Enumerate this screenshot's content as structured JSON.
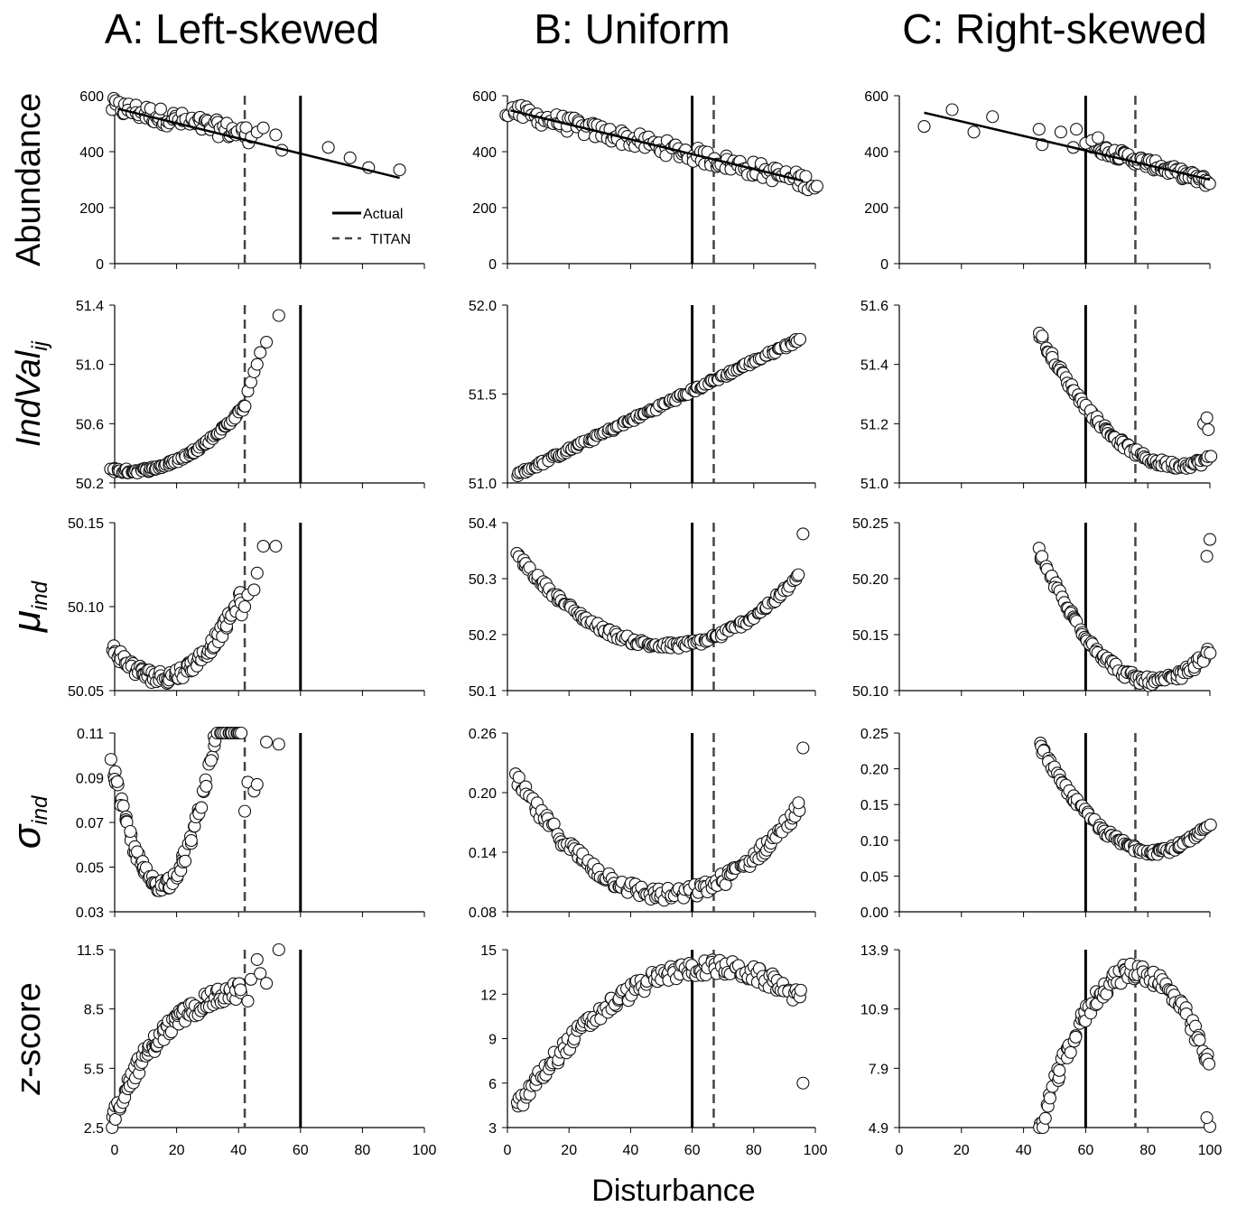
{
  "figure": {
    "column_titles": [
      "A: Left-skewed",
      "B: Uniform",
      "C: Right-skewed"
    ],
    "x_axis_label": "Disturbance",
    "legend": {
      "actual": "Actual",
      "titan": "TITAN"
    },
    "row_labels": [
      {
        "text": "Abundance",
        "sub": "",
        "italic": false,
        "greek": false
      },
      {
        "text": "IndVal",
        "sub": "ij",
        "italic": true,
        "greek": false
      },
      {
        "text": "μ",
        "sub": "ind",
        "italic": true,
        "greek": true
      },
      {
        "text": "σ",
        "sub": "ind",
        "italic": true,
        "greek": true
      },
      {
        "text": "z-score",
        "sub": "",
        "italic": false,
        "greek": false,
        "italic_first": true
      }
    ]
  },
  "chart_data": [
    {
      "type": "scatter",
      "panel": "A-abundance",
      "xlim": [
        0,
        100
      ],
      "xticks": [
        0,
        20,
        40,
        60,
        80,
        100
      ],
      "ylim": [
        0,
        600
      ],
      "yticks": [
        "0",
        "200",
        "400",
        "600"
      ],
      "actual_x": 60,
      "titan_x": 42,
      "trend": "regression",
      "show_legend": true,
      "show_xticklabels": false,
      "cluster": {
        "x_from": -1,
        "x_to": 44,
        "y0": 560,
        "slope": -2.3,
        "noise": 30,
        "count": 80
      },
      "extra_points": [
        [
          46,
          470
        ],
        [
          48,
          485
        ],
        [
          52,
          460
        ],
        [
          54,
          405
        ],
        [
          69,
          415
        ],
        [
          76,
          378
        ],
        [
          82,
          343
        ],
        [
          92,
          335
        ]
      ]
    },
    {
      "type": "scatter",
      "panel": "B-abundance",
      "xlim": [
        0,
        100
      ],
      "xticks": [
        0,
        20,
        40,
        60,
        80,
        100
      ],
      "ylim": [
        0,
        600
      ],
      "yticks": [
        "0",
        "200",
        "400",
        "600"
      ],
      "actual_x": 60,
      "titan_x": 67,
      "trend": "regression",
      "show_xticklabels": false,
      "cluster": {
        "x_from": 0,
        "x_to": 100,
        "y0": 550,
        "slope": -2.65,
        "noise": 28,
        "count": 150
      },
      "extra_points": []
    },
    {
      "type": "scatter",
      "panel": "C-abundance",
      "xlim": [
        0,
        100
      ],
      "xticks": [
        0,
        20,
        40,
        60,
        80,
        100
      ],
      "ylim": [
        0,
        600
      ],
      "yticks": [
        "0",
        "200",
        "400",
        "600"
      ],
      "actual_x": 60,
      "titan_x": 76,
      "trend": "regression",
      "show_xticklabels": false,
      "cluster": {
        "x_from": 62,
        "x_to": 100,
        "y0": 630,
        "slope": -3.4,
        "noise": 18,
        "count": 90
      },
      "extra_points": [
        [
          8,
          490
        ],
        [
          17,
          550
        ],
        [
          24,
          470
        ],
        [
          30,
          525
        ],
        [
          45,
          480
        ],
        [
          46,
          425
        ],
        [
          52,
          470
        ],
        [
          56,
          415
        ],
        [
          57,
          480
        ],
        [
          60,
          430
        ],
        [
          62,
          440
        ],
        [
          64,
          450
        ]
      ]
    },
    {
      "type": "scatter",
      "panel": "A-indval",
      "xlim": [
        0,
        100
      ],
      "xticks": [
        0,
        20,
        40,
        60,
        80,
        100
      ],
      "ylim": [
        50.2,
        51.4
      ],
      "yticks": [
        "50.2",
        "50.6",
        "51.0",
        "51.4"
      ],
      "actual_x": 60,
      "titan_x": 42,
      "show_xticklabels": false,
      "cluster": {
        "x_from": -1,
        "x_to": 42,
        "curve": "quad",
        "vmin": 50.28,
        "xmin": 5,
        "k": 0.00032,
        "noise": 0.015,
        "count": 110
      },
      "extra_points": [
        [
          43,
          50.82
        ],
        [
          44,
          50.88
        ],
        [
          45,
          50.95
        ],
        [
          46,
          51.0
        ],
        [
          47,
          51.08
        ],
        [
          49,
          51.15
        ],
        [
          53,
          51.33
        ]
      ]
    },
    {
      "type": "scatter",
      "panel": "B-indval",
      "xlim": [
        0,
        100
      ],
      "xticks": [
        0,
        20,
        40,
        60,
        80,
        100
      ],
      "ylim": [
        51.0,
        52.0
      ],
      "yticks": [
        "51.0",
        "51.5",
        "52.0"
      ],
      "actual_x": 60,
      "titan_x": 67,
      "show_xticklabels": false,
      "cluster": {
        "x_from": 3,
        "x_to": 95,
        "curve": "linear",
        "y0": 51.02,
        "slope": 0.0083,
        "noise": 0.012,
        "count": 160
      },
      "extra_points": []
    },
    {
      "type": "scatter",
      "panel": "C-indval",
      "xlim": [
        0,
        100
      ],
      "xticks": [
        0,
        20,
        40,
        60,
        80,
        100
      ],
      "ylim": [
        51.0,
        51.6
      ],
      "yticks": [
        "51.0",
        "51.2",
        "51.4",
        "51.6"
      ],
      "actual_x": 60,
      "titan_x": 76,
      "show_xticklabels": false,
      "cluster": {
        "x_from": 45,
        "x_to": 100,
        "curve": "quad",
        "vmin": 51.06,
        "xmin": 90,
        "k": 0.00022,
        "noise": 0.012,
        "count": 110
      },
      "extra_points": [
        [
          98,
          51.2
        ],
        [
          99,
          51.22
        ],
        [
          99.5,
          51.18
        ]
      ]
    },
    {
      "type": "scatter",
      "panel": "A-mu",
      "xlim": [
        0,
        100
      ],
      "xticks": [
        0,
        20,
        40,
        60,
        80,
        100
      ],
      "ylim": [
        50.05,
        50.15
      ],
      "yticks": [
        "50.05",
        "50.10",
        "50.15"
      ],
      "actual_x": 60,
      "titan_x": 42,
      "show_xticklabels": false,
      "cluster": {
        "x_from": -1,
        "x_to": 41,
        "curve": "quad",
        "vmin": 50.058,
        "xmin": 15,
        "k": 7.2e-05,
        "noise": 0.004,
        "count": 110
      },
      "extra_points": [
        [
          41,
          50.095
        ],
        [
          42,
          50.1
        ],
        [
          43,
          50.107
        ],
        [
          45,
          50.11
        ],
        [
          46,
          50.12
        ],
        [
          48,
          50.136
        ],
        [
          52,
          50.136
        ]
      ]
    },
    {
      "type": "scatter",
      "panel": "B-mu",
      "xlim": [
        0,
        100
      ],
      "xticks": [
        0,
        20,
        40,
        60,
        80,
        100
      ],
      "ylim": [
        50.1,
        50.4
      ],
      "yticks": [
        "50.1",
        "50.2",
        "50.3",
        "50.4"
      ],
      "actual_x": 60,
      "titan_x": 67,
      "show_xticklabels": false,
      "cluster": {
        "x_from": 3,
        "x_to": 95,
        "curve": "quad",
        "vmin": 50.18,
        "xmin": 52,
        "k": 6.8e-05,
        "noise": 0.006,
        "count": 160
      },
      "extra_points": [
        [
          96,
          50.38
        ]
      ]
    },
    {
      "type": "scatter",
      "panel": "C-mu",
      "xlim": [
        0,
        100
      ],
      "xticks": [
        0,
        20,
        40,
        60,
        80,
        100
      ],
      "ylim": [
        50.1,
        50.25
      ],
      "yticks": [
        "50.10",
        "50.15",
        "50.20",
        "50.25"
      ],
      "actual_x": 60,
      "titan_x": 76,
      "show_xticklabels": false,
      "cluster": {
        "x_from": 45,
        "x_to": 100,
        "curve": "quad",
        "vmin": 50.108,
        "xmin": 82,
        "k": 8.5e-05,
        "noise": 0.004,
        "count": 110
      },
      "extra_points": [
        [
          99,
          50.22
        ],
        [
          100,
          50.235
        ]
      ]
    },
    {
      "type": "scatter",
      "panel": "A-sigma",
      "xlim": [
        0,
        100
      ],
      "xticks": [
        0,
        20,
        40,
        60,
        80,
        100
      ],
      "ylim": [
        0.03,
        0.11
      ],
      "yticks": [
        "0.03",
        "0.05",
        "0.07",
        "0.09",
        "0.11"
      ],
      "actual_x": 60,
      "titan_x": 42,
      "show_xticklabels": false,
      "cluster": {
        "x_from": -1,
        "x_to": 41,
        "curve": "quad",
        "vmin": 0.042,
        "xmin": 15,
        "k": 0.00022,
        "noise": 0.003,
        "count": 110
      },
      "extra_points": [
        [
          42,
          0.075
        ],
        [
          43,
          0.088
        ],
        [
          45,
          0.084
        ],
        [
          46,
          0.087
        ],
        [
          49,
          0.106
        ],
        [
          53,
          0.105
        ]
      ]
    },
    {
      "type": "scatter",
      "panel": "B-sigma",
      "xlim": [
        0,
        100
      ],
      "xticks": [
        0,
        20,
        40,
        60,
        80,
        100
      ],
      "ylim": [
        0.08,
        0.26
      ],
      "yticks": [
        "0.08",
        "0.14",
        "0.20",
        "0.26"
      ],
      "actual_x": 60,
      "titan_x": 67,
      "show_xticklabels": false,
      "cluster": {
        "x_from": 3,
        "x_to": 95,
        "curve": "quad",
        "vmin": 0.097,
        "xmin": 52,
        "k": 4.8e-05,
        "noise": 0.007,
        "count": 160
      },
      "extra_points": [
        [
          96,
          0.245
        ]
      ]
    },
    {
      "type": "scatter",
      "panel": "C-sigma",
      "xlim": [
        0,
        100
      ],
      "xticks": [
        0,
        20,
        40,
        60,
        80,
        100
      ],
      "ylim": [
        0.0,
        0.25
      ],
      "yticks": [
        "0.00",
        "0.05",
        "0.10",
        "0.15",
        "0.20",
        "0.25"
      ],
      "actual_x": 60,
      "titan_x": 76,
      "show_xticklabels": false,
      "cluster": {
        "x_from": 45,
        "x_to": 100,
        "curve": "quad",
        "vmin": 0.085,
        "xmin": 82,
        "k": 0.00011,
        "noise": 0.005,
        "count": 110
      },
      "extra_points": []
    },
    {
      "type": "scatter",
      "panel": "A-z",
      "xlim": [
        0,
        100
      ],
      "xticks": [
        "0",
        "20",
        "40",
        "60",
        "80",
        "100"
      ],
      "ylim": [
        2.5,
        11.5
      ],
      "yticks": [
        "2.5",
        "5.5",
        "8.5",
        "11.5"
      ],
      "actual_x": 60,
      "titan_x": 42,
      "show_xticklabels": true,
      "cluster": {
        "x_from": -1,
        "x_to": 41,
        "curve": "sat",
        "y0": 2.8,
        "ymax": 10.2,
        "xk": 18,
        "noise": 0.45,
        "count": 110
      },
      "extra_points": [
        [
          43,
          8.9
        ],
        [
          44,
          10.0
        ],
        [
          46,
          11.0
        ],
        [
          47,
          10.3
        ],
        [
          49,
          9.8
        ],
        [
          53,
          11.5
        ]
      ]
    },
    {
      "type": "scatter",
      "panel": "B-z",
      "xlim": [
        0,
        100
      ],
      "xticks": [
        "0",
        "20",
        "40",
        "60",
        "80",
        "100"
      ],
      "ylim": [
        3,
        15
      ],
      "yticks": [
        "3",
        "6",
        "9",
        "12",
        "15"
      ],
      "actual_x": 60,
      "titan_x": 67,
      "show_xticklabels": true,
      "cluster": {
        "x_from": 3,
        "x_to": 95,
        "curve": "arch",
        "peak": 13.8,
        "xpeak": 66,
        "k": 0.0024,
        "noise": 0.55,
        "count": 160
      },
      "extra_points": [
        [
          96,
          6.0
        ]
      ]
    },
    {
      "type": "scatter",
      "panel": "C-z",
      "xlim": [
        0,
        100
      ],
      "xticks": [
        "0",
        "20",
        "40",
        "60",
        "80",
        "100"
      ],
      "ylim": [
        4.9,
        13.9
      ],
      "yticks": [
        "4.9",
        "7.9",
        "10.9",
        "13.9"
      ],
      "actual_x": 60,
      "titan_x": 76,
      "show_xticklabels": true,
      "cluster": {
        "x_from": 45,
        "x_to": 100,
        "curve": "arch",
        "peak": 12.8,
        "xpeak": 76,
        "k": 0.0085,
        "noise": 0.45,
        "count": 110
      },
      "extra_points": [
        [
          100,
          4.95
        ],
        [
          99,
          5.4
        ]
      ]
    }
  ]
}
